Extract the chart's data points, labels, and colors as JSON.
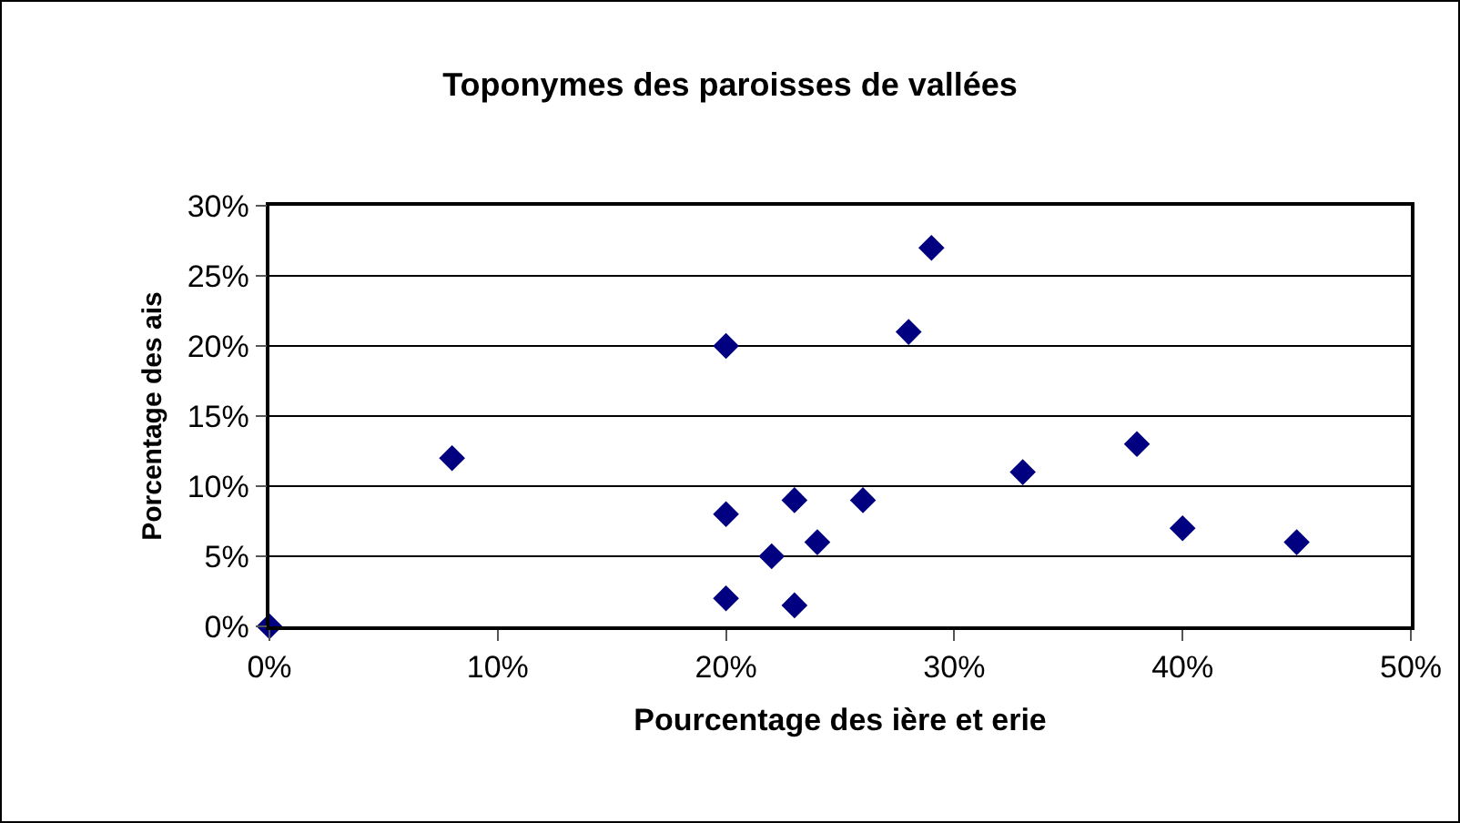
{
  "chart_data": {
    "type": "scatter",
    "title": "Toponymes des paroisses de vallées",
    "xlabel": "Pourcentage des ière et erie",
    "ylabel": "Porcentage des ais",
    "x": [
      0,
      8,
      20,
      20,
      20,
      22,
      23,
      23,
      24,
      26,
      28,
      29,
      33,
      38,
      40,
      45
    ],
    "series": [
      {
        "color": "#000080",
        "values": [
          0,
          12,
          20,
          8,
          2,
          5,
          9,
          1.5,
          6,
          9,
          21,
          27,
          11,
          13,
          7,
          6
        ]
      }
    ],
    "xlim": [
      0,
      50
    ],
    "xticks": [
      {
        "value": 0,
        "label": "0%"
      },
      {
        "value": 10,
        "label": "10%"
      },
      {
        "value": 20,
        "label": "20%"
      },
      {
        "value": 30,
        "label": "30%"
      },
      {
        "value": 40,
        "label": "40%"
      },
      {
        "value": 50,
        "label": "50%"
      }
    ],
    "ylim": [
      0,
      30
    ],
    "yticks": [
      {
        "value": 0,
        "label": "0%"
      },
      {
        "value": 5,
        "label": "5%"
      },
      {
        "value": 10,
        "label": "10%"
      },
      {
        "value": 15,
        "label": "15%"
      },
      {
        "value": 20,
        "label": "20%"
      },
      {
        "value": 25,
        "label": "25%"
      },
      {
        "value": 30,
        "label": "30%"
      }
    ],
    "grid": "y",
    "marker": "diamond"
  }
}
